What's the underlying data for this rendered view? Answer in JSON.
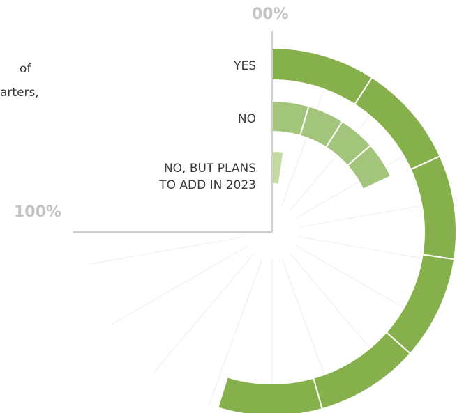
{
  "intro": {
    "line1": "of",
    "line2": "arters,"
  },
  "chart_data": {
    "type": "radial-bar",
    "axis": {
      "start_label": "00%",
      "end_label": "100%"
    },
    "series": [
      {
        "name": "YES",
        "value": 73,
        "color": "#86b04b"
      },
      {
        "name": "NO",
        "value": 24,
        "color": "#a3c47b"
      },
      {
        "name": "NO, BUT PLANS TO ADD IN 2023",
        "value": 3,
        "color": "#c3dba3"
      }
    ],
    "label_lines": {
      "yes": [
        "YES"
      ],
      "no": [
        "NO"
      ],
      "plans": [
        "NO, BUT PLANS",
        "TO ADD IN 2023"
      ]
    },
    "colors": {
      "axis": "#cfcfcf",
      "grid": "#f0f0f0",
      "percent_text": "#c4c4c4",
      "label_text": "#3a3a3a"
    }
  }
}
